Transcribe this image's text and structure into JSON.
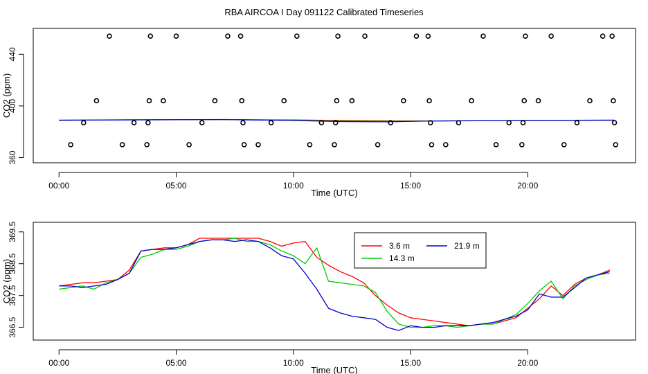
{
  "figure_title": "RBA AIRCOA I  Day 091122  Calibrated Timeseries",
  "chart_data": [
    {
      "type": "scatter+line",
      "xlabel": "Time (UTC)",
      "ylabel": "CO2 (ppm)",
      "xlim": [
        -1.1,
        24.6
      ],
      "ylim": [
        356,
        460
      ],
      "x_ticks": [
        0,
        5,
        10,
        15,
        20
      ],
      "x_tick_labels": [
        "00:00",
        "05:00",
        "10:00",
        "15:00",
        "20:00"
      ],
      "y_ticks": [
        360,
        400,
        440
      ],
      "y_tick_labels": [
        "360",
        "400",
        "440"
      ],
      "points": [
        {
          "x": 0.5,
          "y": 370
        },
        {
          "x": 1.05,
          "y": 387
        },
        {
          "x": 1.6,
          "y": 404
        },
        {
          "x": 2.15,
          "y": 454
        },
        {
          "x": 2.7,
          "y": 370
        },
        {
          "x": 3.2,
          "y": 387
        },
        {
          "x": 3.75,
          "y": 370
        },
        {
          "x": 3.8,
          "y": 387
        },
        {
          "x": 3.85,
          "y": 404
        },
        {
          "x": 3.9,
          "y": 454
        },
        {
          "x": 4.45,
          "y": 404
        },
        {
          "x": 5.0,
          "y": 454
        },
        {
          "x": 5.55,
          "y": 370
        },
        {
          "x": 6.1,
          "y": 387
        },
        {
          "x": 6.65,
          "y": 404
        },
        {
          "x": 7.2,
          "y": 454
        },
        {
          "x": 7.75,
          "y": 454
        },
        {
          "x": 7.8,
          "y": 404
        },
        {
          "x": 7.85,
          "y": 387
        },
        {
          "x": 7.9,
          "y": 370
        },
        {
          "x": 8.5,
          "y": 370
        },
        {
          "x": 9.05,
          "y": 387
        },
        {
          "x": 9.6,
          "y": 404
        },
        {
          "x": 10.15,
          "y": 454
        },
        {
          "x": 10.7,
          "y": 370
        },
        {
          "x": 11.2,
          "y": 387
        },
        {
          "x": 11.75,
          "y": 370
        },
        {
          "x": 11.8,
          "y": 387
        },
        {
          "x": 11.85,
          "y": 404
        },
        {
          "x": 11.9,
          "y": 454
        },
        {
          "x": 12.5,
          "y": 404
        },
        {
          "x": 13.05,
          "y": 454
        },
        {
          "x": 13.6,
          "y": 370
        },
        {
          "x": 14.15,
          "y": 387
        },
        {
          "x": 14.7,
          "y": 404
        },
        {
          "x": 15.25,
          "y": 454
        },
        {
          "x": 15.75,
          "y": 454
        },
        {
          "x": 15.8,
          "y": 404
        },
        {
          "x": 15.85,
          "y": 387
        },
        {
          "x": 15.9,
          "y": 370
        },
        {
          "x": 16.5,
          "y": 370
        },
        {
          "x": 17.05,
          "y": 387
        },
        {
          "x": 17.6,
          "y": 404
        },
        {
          "x": 18.1,
          "y": 454
        },
        {
          "x": 18.65,
          "y": 370
        },
        {
          "x": 19.2,
          "y": 387
        },
        {
          "x": 19.75,
          "y": 370
        },
        {
          "x": 19.8,
          "y": 387
        },
        {
          "x": 19.85,
          "y": 404
        },
        {
          "x": 19.9,
          "y": 454
        },
        {
          "x": 20.45,
          "y": 404
        },
        {
          "x": 21.0,
          "y": 454
        },
        {
          "x": 21.55,
          "y": 370
        },
        {
          "x": 22.1,
          "y": 387
        },
        {
          "x": 22.65,
          "y": 404
        },
        {
          "x": 23.2,
          "y": 454
        },
        {
          "x": 23.6,
          "y": 454
        },
        {
          "x": 23.65,
          "y": 404
        },
        {
          "x": 23.7,
          "y": 387
        },
        {
          "x": 23.75,
          "y": 370
        }
      ],
      "lines": [
        {
          "name": "3.6 m",
          "color": "#ff0000",
          "x": [
            0,
            3,
            7,
            10,
            12,
            14,
            16,
            20,
            23.7
          ],
          "y": [
            389,
            389.3,
            389.5,
            389.2,
            388.8,
            388.5,
            388.4,
            388.8,
            389
          ]
        },
        {
          "name": "14.3 m",
          "color": "#00cc00",
          "x": [
            0,
            3,
            7,
            10,
            12,
            14,
            16,
            20,
            23.7
          ],
          "y": [
            388.8,
            389.2,
            389.4,
            388.9,
            388.3,
            388.1,
            388.3,
            388.8,
            389
          ]
        },
        {
          "name": "21.9 m",
          "color": "#0000cc",
          "x": [
            0,
            3,
            7,
            10,
            12,
            14,
            16,
            20,
            23.7
          ],
          "y": [
            388.9,
            389.2,
            389.4,
            388.7,
            387.9,
            387.7,
            388.3,
            388.7,
            388.9
          ]
        }
      ]
    },
    {
      "type": "line",
      "xlabel": "Time (UTC)",
      "ylabel": "CO2 (ppm)",
      "xlim": [
        -1.1,
        24.6
      ],
      "ylim": [
        366.1,
        369.8
      ],
      "x_ticks": [
        0,
        5,
        10,
        15,
        20
      ],
      "x_tick_labels": [
        "00:00",
        "05:00",
        "10:00",
        "15:00",
        "20:00"
      ],
      "y_ticks": [
        366.5,
        367.5,
        368.5,
        369.5
      ],
      "y_tick_labels": [
        "366.5",
        "367.5",
        "368.5",
        "369.5"
      ],
      "legend": {
        "position": "top-center"
      },
      "series": [
        {
          "name": "3.6 m",
          "color": "#ff0000",
          "x": [
            0,
            0.5,
            1,
            1.5,
            2,
            2.5,
            3,
            3.5,
            4,
            4.5,
            5,
            5.5,
            6,
            6.5,
            7,
            7.5,
            8,
            8.5,
            9,
            9.5,
            10,
            10.5,
            11,
            11.5,
            12,
            12.5,
            13,
            13.5,
            14,
            14.5,
            15,
            15.5,
            16,
            16.5,
            17,
            17.5,
            18,
            18.5,
            19,
            19.5,
            20,
            20.5,
            21,
            21.5,
            22,
            22.5,
            23,
            23.5
          ],
          "y": [
            367.8,
            367.85,
            367.9,
            367.9,
            367.95,
            368.0,
            368.3,
            368.9,
            368.95,
            369.0,
            369.0,
            369.1,
            369.3,
            369.3,
            369.3,
            369.3,
            369.3,
            369.3,
            369.2,
            369.05,
            369.15,
            369.2,
            368.7,
            368.45,
            368.25,
            368.1,
            367.9,
            367.5,
            367.2,
            366.95,
            366.8,
            366.75,
            366.7,
            366.65,
            366.6,
            366.55,
            366.6,
            366.6,
            366.7,
            366.8,
            367.1,
            367.4,
            367.8,
            367.5,
            367.85,
            368.05,
            368.15,
            368.3
          ]
        },
        {
          "name": "14.3 m",
          "color": "#00cc00",
          "x": [
            0,
            0.5,
            1,
            1.5,
            2,
            2.5,
            3,
            3.5,
            4,
            4.5,
            5,
            5.5,
            6,
            6.5,
            7,
            7.5,
            8,
            8.5,
            9,
            9.5,
            10,
            10.5,
            11,
            11.5,
            12,
            12.5,
            13,
            13.5,
            14,
            14.5,
            15,
            15.5,
            16,
            16.5,
            17,
            17.5,
            18,
            18.5,
            19,
            19.5,
            20,
            20.5,
            21,
            21.5,
            22,
            22.5,
            23,
            23.5
          ],
          "y": [
            367.7,
            367.75,
            367.8,
            367.7,
            367.9,
            368.0,
            368.2,
            368.7,
            368.8,
            368.95,
            368.95,
            369.05,
            369.2,
            369.25,
            369.25,
            369.3,
            369.2,
            369.2,
            369.1,
            368.9,
            368.75,
            368.5,
            369.0,
            367.95,
            367.9,
            367.85,
            367.8,
            367.6,
            367.0,
            366.6,
            366.5,
            366.5,
            366.55,
            366.55,
            366.5,
            366.55,
            366.6,
            366.6,
            366.75,
            366.9,
            367.25,
            367.65,
            367.95,
            367.4,
            367.8,
            368.0,
            368.15,
            368.2
          ]
        },
        {
          "name": "21.9 m",
          "color": "#0000cc",
          "x": [
            0,
            0.5,
            1,
            1.5,
            2,
            2.5,
            3,
            3.5,
            4,
            4.5,
            5,
            5.5,
            6,
            6.5,
            7,
            7.5,
            8,
            8.5,
            9,
            9.5,
            10,
            10.5,
            11,
            11.5,
            12,
            12.5,
            13,
            13.5,
            14,
            14.5,
            15,
            15.5,
            16,
            16.5,
            17,
            17.5,
            18,
            18.5,
            19,
            19.5,
            20,
            20.5,
            21,
            21.5,
            22,
            22.5,
            23,
            23.5
          ],
          "y": [
            367.8,
            367.8,
            367.75,
            367.8,
            367.85,
            368.0,
            368.2,
            368.9,
            368.95,
            368.95,
            369.0,
            369.1,
            369.2,
            369.25,
            369.25,
            369.2,
            369.25,
            369.2,
            369.0,
            368.75,
            368.65,
            368.2,
            367.7,
            367.1,
            366.95,
            366.85,
            366.8,
            366.75,
            366.5,
            366.4,
            366.55,
            366.5,
            366.5,
            366.55,
            366.55,
            366.55,
            366.6,
            366.65,
            366.75,
            366.85,
            367.05,
            367.55,
            367.45,
            367.45,
            367.75,
            368.05,
            368.15,
            368.25
          ]
        }
      ]
    }
  ]
}
